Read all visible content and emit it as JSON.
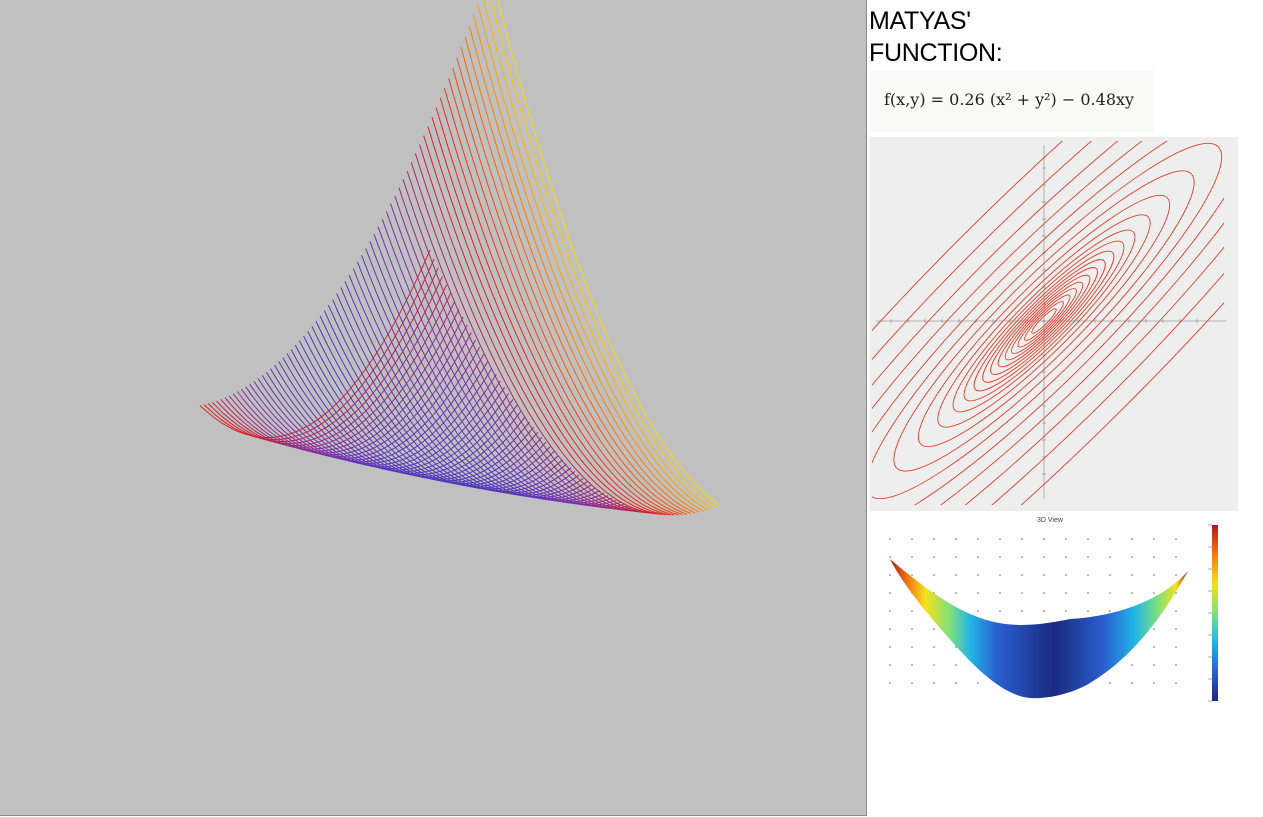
{
  "page": {
    "title_line_1": "MATYAS'",
    "title_line_2": "FUNCTION:",
    "formula": "f(x,y) = 0.26 (x² + y²) − 0.48xy"
  },
  "function": {
    "coefficient_a": 0.26,
    "coefficient_b": 0.48
  },
  "main_plot": {
    "type": "3d-wireframe",
    "x_range": [
      -10,
      10
    ],
    "y_range": [
      -10,
      10
    ],
    "colormap": [
      "#2d3fc8",
      "#7a2fb0",
      "#e02020",
      "#ff6a00",
      "#ffd700"
    ]
  },
  "contour_plot": {
    "type": "contour",
    "x_range": [
      -10,
      10
    ],
    "y_range": [
      -10,
      10
    ],
    "line_color": "#e0402a"
  },
  "surface_plot": {
    "type": "3d-surface",
    "title": "3D View",
    "colormap": "jet"
  }
}
